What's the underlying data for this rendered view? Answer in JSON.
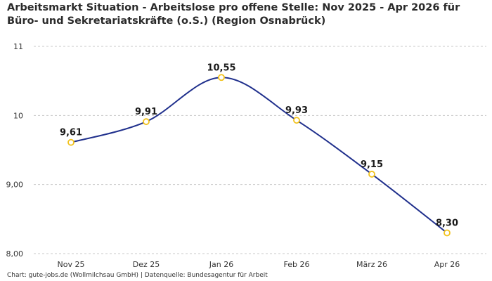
{
  "chart_data": {
    "type": "line",
    "title": "Arbeitsmarkt Situation - Arbeitslose pro offene Stelle: Nov 2025 - Apr 2026 für Büro- und Sekretariatskräfte (o.S.) (Region Osnabrück)",
    "categories": [
      "Nov 25",
      "Dez 25",
      "Jan 26",
      "Feb 26",
      "März 26",
      "Apr 26"
    ],
    "series": [
      {
        "values": [
          9.61,
          9.91,
          10.55,
          9.93,
          9.15,
          8.3
        ],
        "labels": [
          "9,61",
          "9,91",
          "10,55",
          "9,93",
          "9,15",
          "8,30"
        ]
      }
    ],
    "ylim": [
      8,
      11
    ],
    "yticks": [
      8,
      9,
      10,
      11
    ],
    "ytick_labels": [
      "8,00",
      "9,00",
      "10",
      "11"
    ],
    "grid": true,
    "source": "Chart: gute-jobs.de (Wollmilchsau GmbH) | Datenquelle: Bundesagentur für Arbeit",
    "colors": {
      "line": "#1f2f8c",
      "marker": "#f2c21b",
      "grid": "#c8c8c8"
    }
  }
}
